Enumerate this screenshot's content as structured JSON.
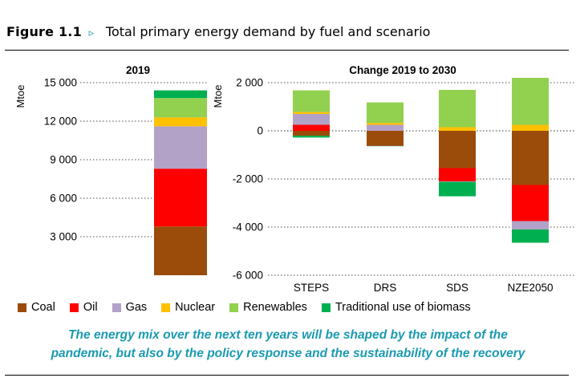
{
  "header": {
    "figure_label": "Figure 1.1",
    "arrow": "▹",
    "title": "Total primary energy demand by fuel and scenario"
  },
  "caption": {
    "line1": "The energy mix over the next ten years will be shaped by the impact of the",
    "line2": "pandemic, but also by the policy response and the sustainability of the recovery"
  },
  "legend": [
    {
      "label": "Coal",
      "color": "#9c4c0a"
    },
    {
      "label": "Oil",
      "color": "#ff0000"
    },
    {
      "label": "Gas",
      "color": "#b3a2c7"
    },
    {
      "label": "Nuclear",
      "color": "#ffc000"
    },
    {
      "label": "Renewables",
      "color": "#92d050"
    },
    {
      "label": "Traditional use of biomass",
      "color": "#00b050"
    }
  ],
  "chart_data": [
    {
      "type": "bar",
      "stacked": true,
      "title": "2019",
      "ylabel": "Mtoe",
      "ylim": [
        0,
        15000
      ],
      "yticks": [
        3000,
        6000,
        9000,
        12000,
        15000
      ],
      "ytick_labels": [
        "3 000",
        "6 000",
        "9 000",
        "12 000",
        "15 000"
      ],
      "grid": "dotted horizontal",
      "categories": [
        "2019"
      ],
      "series": [
        {
          "name": "Coal",
          "values": [
            3800
          ]
        },
        {
          "name": "Oil",
          "values": [
            4500
          ]
        },
        {
          "name": "Gas",
          "values": [
            3300
          ]
        },
        {
          "name": "Nuclear",
          "values": [
            700
          ]
        },
        {
          "name": "Renewables",
          "values": [
            1500
          ]
        },
        {
          "name": "Traditional use of biomass",
          "values": [
            600
          ]
        }
      ]
    },
    {
      "type": "bar",
      "stacked": true,
      "title": "Change 2019 to 2030",
      "ylabel": "Mtoe",
      "ylim": [
        -6000,
        2000
      ],
      "yticks": [
        -6000,
        -4000,
        -2000,
        0,
        2000
      ],
      "ytick_labels": [
        "-6 000",
        "-4 000",
        "-2 000",
        "0",
        "2 000"
      ],
      "grid": "dotted horizontal",
      "categories": [
        "STEPS",
        "DRS",
        "SDS",
        "NZE2050"
      ],
      "series": [
        {
          "name": "Coal",
          "values": [
            -200,
            -600,
            -1550,
            -2250
          ]
        },
        {
          "name": "Oil",
          "values": [
            250,
            -20,
            -550,
            -1500
          ]
        },
        {
          "name": "Gas",
          "values": [
            450,
            250,
            -20,
            -350
          ]
        },
        {
          "name": "Nuclear",
          "values": [
            80,
            80,
            150,
            250
          ]
        },
        {
          "name": "Renewables",
          "values": [
            900,
            850,
            1550,
            1950
          ]
        },
        {
          "name": "Traditional use of biomass",
          "values": [
            -80,
            -20,
            -600,
            -550
          ]
        }
      ]
    }
  ]
}
